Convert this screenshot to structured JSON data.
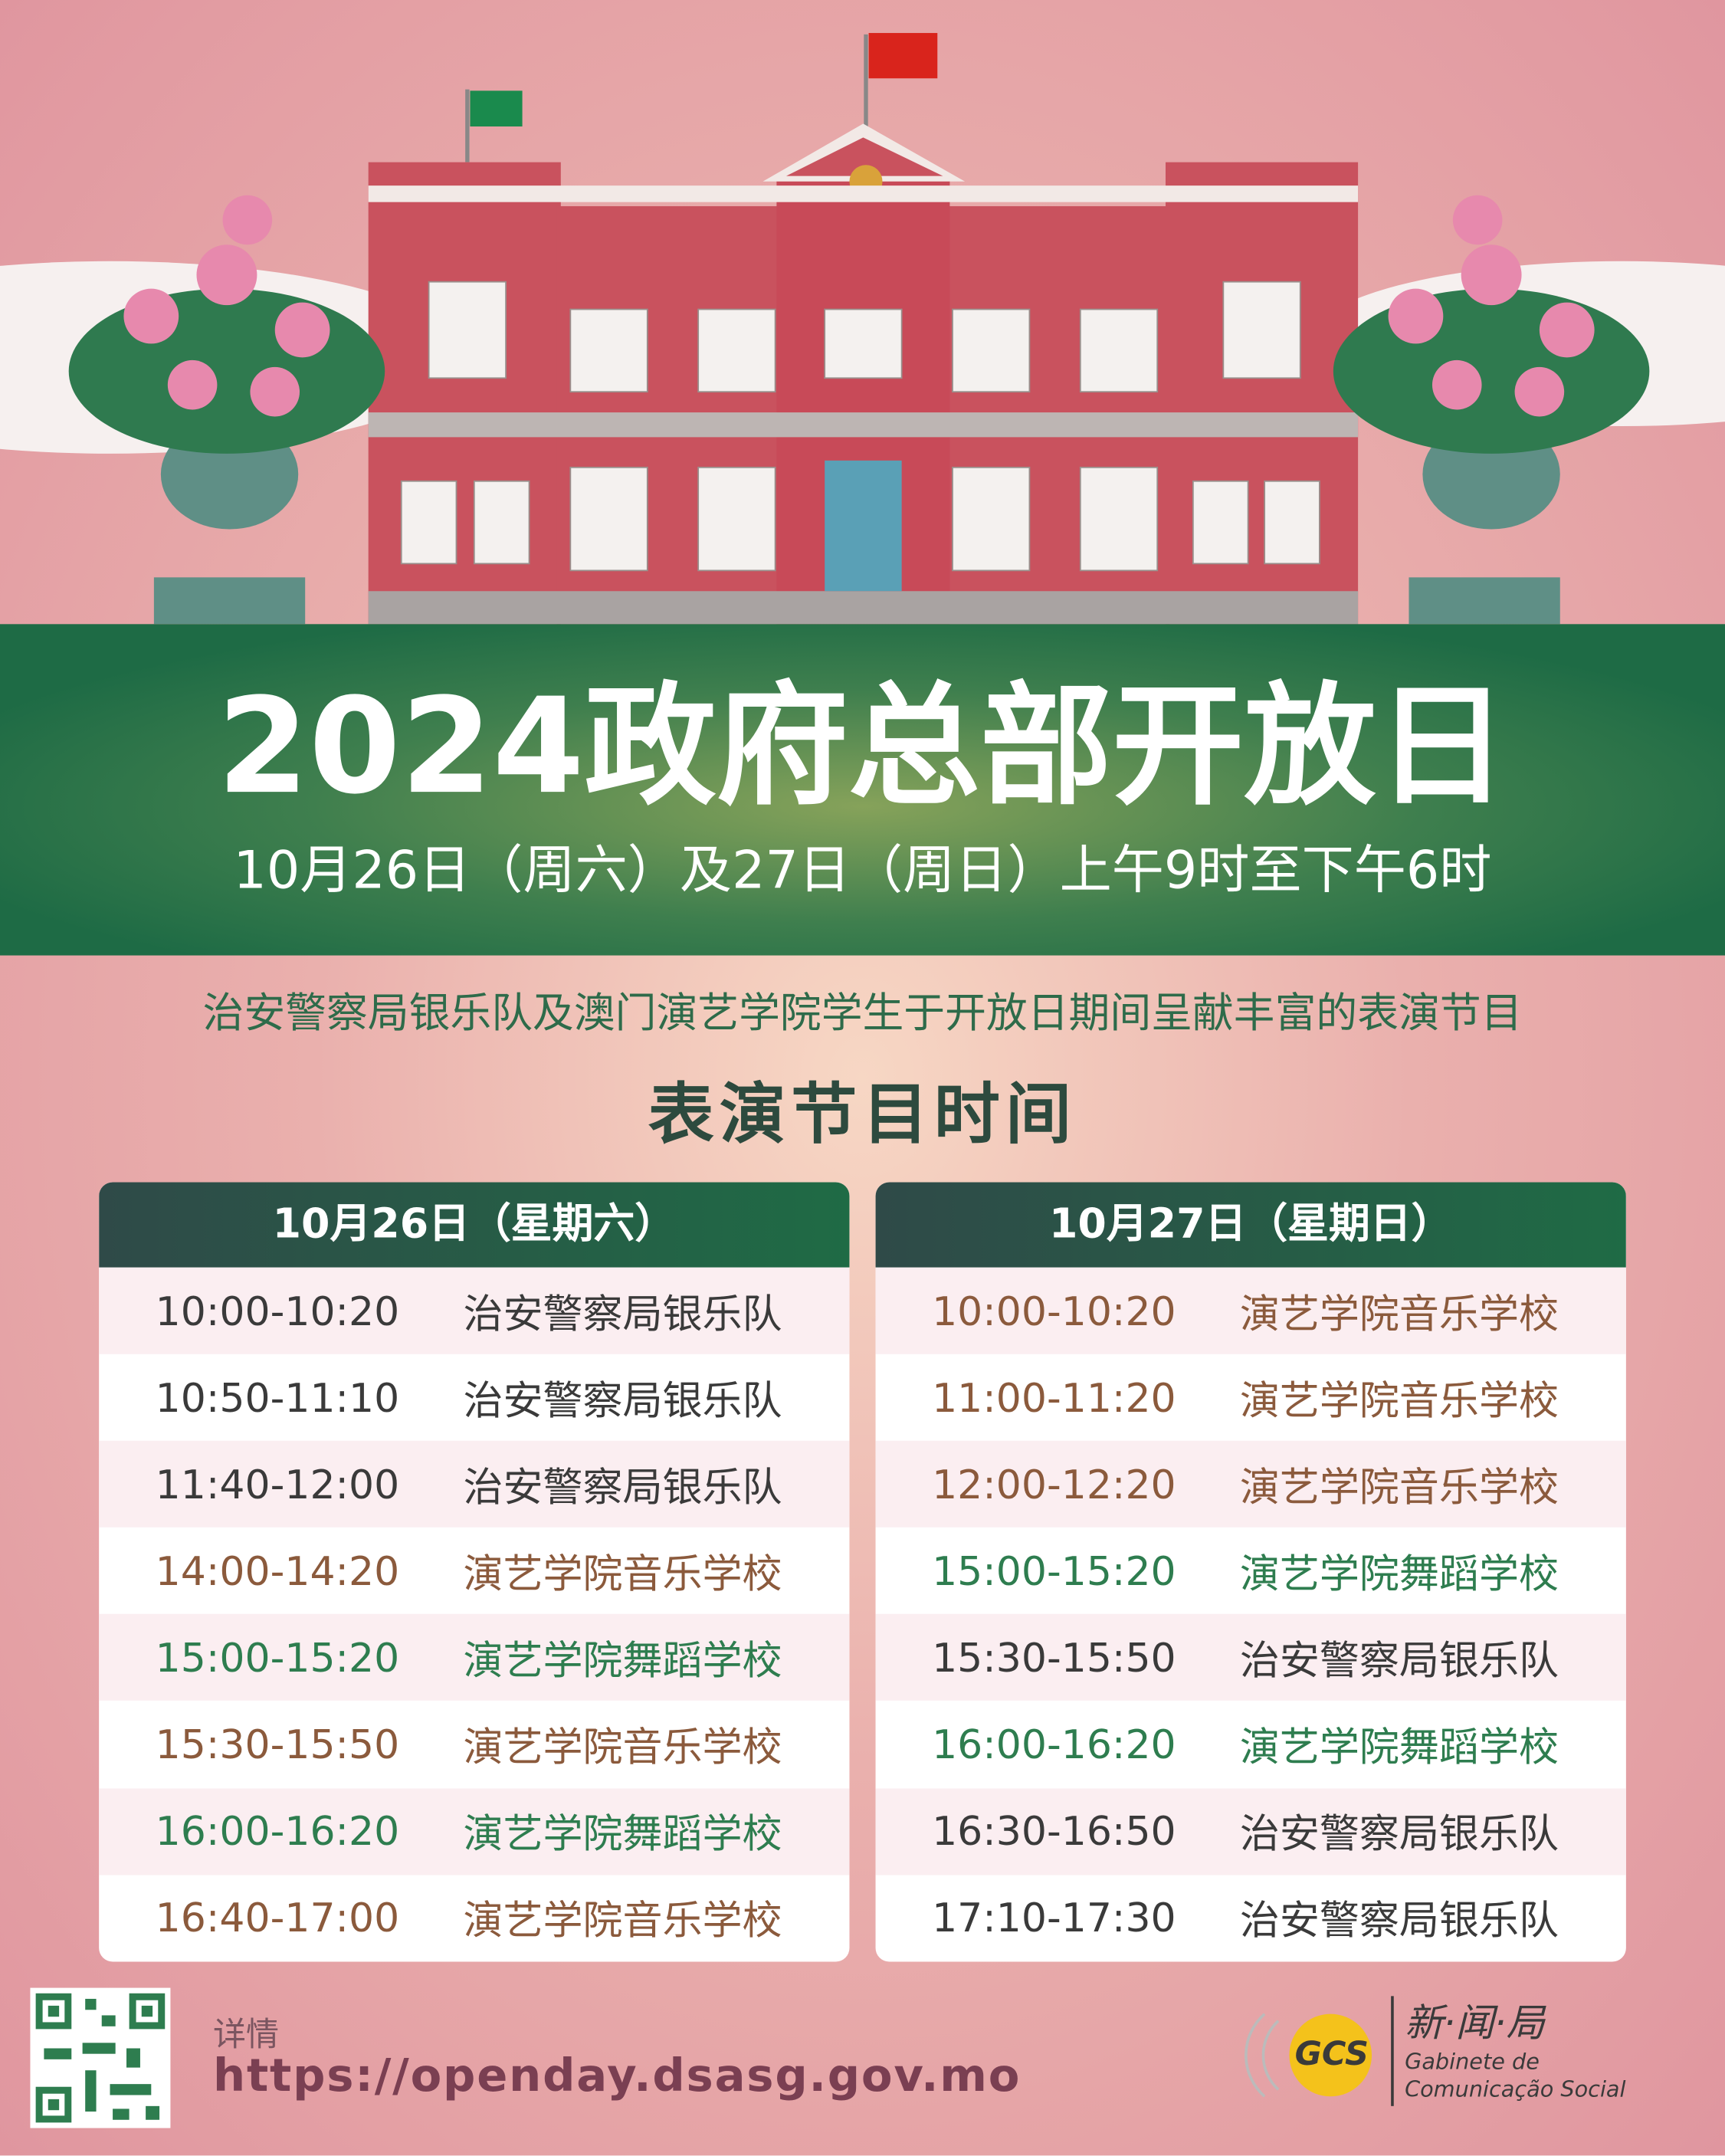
{
  "header": {
    "title": "2024政府总部开放日",
    "subtitle": "10月26日（周六）及27日（周日）上午9时至下午6时"
  },
  "intro": "治安警察局银乐队及澳门演艺学院学生于开放日期间呈献丰富的表演节目",
  "schedule_title": "表演节目时间",
  "tables": [
    {
      "heading": "10月26日（星期六）",
      "rows": [
        {
          "time": "10:00-10:20",
          "performer": "治安警察局银乐队",
          "color": "#3a3a3a"
        },
        {
          "time": "10:50-11:10",
          "performer": "治安警察局银乐队",
          "color": "#3a3a3a"
        },
        {
          "time": "11:40-12:00",
          "performer": "治安警察局银乐队",
          "color": "#3a3a3a"
        },
        {
          "time": "14:00-14:20",
          "performer": "演艺学院音乐学校",
          "color": "#8b5a3c"
        },
        {
          "time": "15:00-15:20",
          "performer": "演艺学院舞蹈学校",
          "color": "#2e7d4f"
        },
        {
          "time": "15:30-15:50",
          "performer": "演艺学院音乐学校",
          "color": "#8b5a3c"
        },
        {
          "time": "16:00-16:20",
          "performer": "演艺学院舞蹈学校",
          "color": "#2e7d4f"
        },
        {
          "time": "16:40-17:00",
          "performer": "演艺学院音乐学校",
          "color": "#8b5a3c"
        }
      ]
    },
    {
      "heading": "10月27日（星期日）",
      "rows": [
        {
          "time": "10:00-10:20",
          "performer": "演艺学院音乐学校",
          "color": "#8b5a3c"
        },
        {
          "time": "11:00-11:20",
          "performer": "演艺学院音乐学校",
          "color": "#8b5a3c"
        },
        {
          "time": "12:00-12:20",
          "performer": "演艺学院音乐学校",
          "color": "#8b5a3c"
        },
        {
          "time": "15:00-15:20",
          "performer": "演艺学院舞蹈学校",
          "color": "#2e7d4f"
        },
        {
          "time": "15:30-15:50",
          "performer": "治安警察局银乐队",
          "color": "#3a3a3a"
        },
        {
          "time": "16:00-16:20",
          "performer": "演艺学院舞蹈学校",
          "color": "#2e7d4f"
        },
        {
          "time": "16:30-16:50",
          "performer": "治安警察局银乐队",
          "color": "#3a3a3a"
        },
        {
          "time": "17:10-17:30",
          "performer": "治安警察局银乐队",
          "color": "#3a3a3a"
        }
      ]
    }
  ],
  "footer": {
    "details_label": "详情",
    "url": "https://openday.dsasg.gov.mo",
    "logo": {
      "mark": "GCS",
      "name": "新·闻·局",
      "line1": "Gabinete de",
      "line2": "Comunicação Social"
    }
  }
}
